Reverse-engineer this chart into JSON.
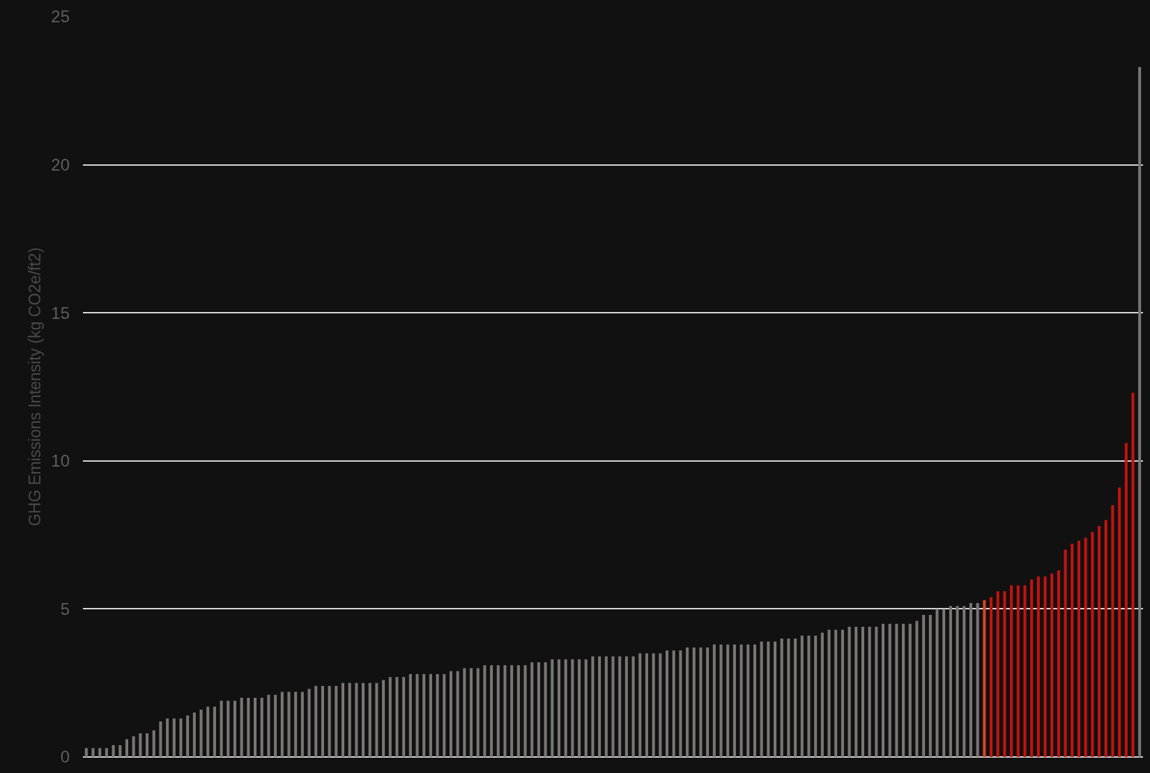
{
  "chart_data": {
    "type": "bar",
    "ylabel": "GHG Emissions Intensity (kg CO2e/ft2)",
    "categories": [
      null,
      null,
      null,
      null,
      null,
      null,
      null,
      null,
      null,
      null,
      null,
      null,
      null,
      null,
      null,
      null,
      null,
      null,
      null,
      null,
      null,
      null,
      null,
      null,
      null,
      null,
      null,
      null,
      null,
      null,
      null,
      null,
      null,
      null,
      null,
      null,
      null,
      null,
      null,
      null,
      null,
      null,
      null,
      null,
      null,
      null,
      null,
      null,
      null,
      null,
      null,
      null,
      null,
      null,
      null,
      null,
      null,
      null,
      null,
      null,
      null,
      null,
      null,
      null,
      null,
      null,
      null,
      null,
      null,
      null,
      null,
      null,
      null,
      null,
      null,
      null,
      null,
      null,
      null,
      null,
      null,
      null,
      null,
      null,
      null,
      null,
      null,
      null,
      null,
      null,
      null,
      null,
      null,
      null,
      null,
      null,
      null,
      null,
      null,
      null,
      null,
      null,
      null,
      null,
      null,
      null,
      null,
      null,
      null,
      null,
      null,
      null,
      null,
      null,
      null,
      null,
      null,
      null,
      null,
      null,
      null,
      null,
      null,
      null,
      null,
      null,
      null,
      null,
      null,
      null,
      null,
      null,
      null,
      null,
      null,
      null,
      null,
      null,
      null,
      null,
      null,
      null,
      null,
      null,
      null,
      null,
      null,
      null,
      null,
      null,
      null,
      null,
      null,
      null,
      null,
      null,
      null
    ],
    "values": [
      0.3,
      0.3,
      0.3,
      0.3,
      0.4,
      0.4,
      0.6,
      0.7,
      0.8,
      0.8,
      0.9,
      1.2,
      1.3,
      1.3,
      1.3,
      1.4,
      1.5,
      1.6,
      1.7,
      1.7,
      1.9,
      1.9,
      1.9,
      2.0,
      2.0,
      2.0,
      2.0,
      2.1,
      2.1,
      2.2,
      2.2,
      2.2,
      2.2,
      2.3,
      2.4,
      2.4,
      2.4,
      2.4,
      2.5,
      2.5,
      2.5,
      2.5,
      2.5,
      2.5,
      2.6,
      2.7,
      2.7,
      2.7,
      2.8,
      2.8,
      2.8,
      2.8,
      2.8,
      2.8,
      2.9,
      2.9,
      3.0,
      3.0,
      3.0,
      3.1,
      3.1,
      3.1,
      3.1,
      3.1,
      3.1,
      3.1,
      3.2,
      3.2,
      3.2,
      3.3,
      3.3,
      3.3,
      3.3,
      3.3,
      3.3,
      3.4,
      3.4,
      3.4,
      3.4,
      3.4,
      3.4,
      3.4,
      3.5,
      3.5,
      3.5,
      3.5,
      3.6,
      3.6,
      3.6,
      3.7,
      3.7,
      3.7,
      3.7,
      3.8,
      3.8,
      3.8,
      3.8,
      3.8,
      3.8,
      3.8,
      3.9,
      3.9,
      3.9,
      4.0,
      4.0,
      4.0,
      4.1,
      4.1,
      4.1,
      4.2,
      4.3,
      4.3,
      4.3,
      4.4,
      4.4,
      4.4,
      4.4,
      4.4,
      4.5,
      4.5,
      4.5,
      4.5,
      4.5,
      4.6,
      4.8,
      4.8,
      5.0,
      5.0,
      5.1,
      5.1,
      5.1,
      5.2,
      5.2,
      5.3,
      5.4,
      5.6,
      5.6,
      5.8,
      5.8,
      5.8,
      6.0,
      6.1,
      6.1,
      6.2,
      6.3,
      7.0,
      7.2,
      7.3,
      7.4,
      7.6,
      7.8,
      8.0,
      8.5,
      9.1,
      10.6,
      12.3,
      23.3
    ],
    "colors": [
      "#7a7676",
      "#7a7676",
      "#7a7676",
      "#7a7676",
      "#7a7676",
      "#7a7676",
      "#7a7676",
      "#7a7676",
      "#7a7676",
      "#7a7676",
      "#7a7676",
      "#7a7676",
      "#7a7676",
      "#7a7676",
      "#7a7676",
      "#7a7676",
      "#7a7676",
      "#7a7676",
      "#7a7676",
      "#7a7676",
      "#7a7676",
      "#7a7676",
      "#7a7676",
      "#7a7676",
      "#7a7676",
      "#7a7676",
      "#7a7676",
      "#7a7676",
      "#7a7676",
      "#7a7676",
      "#7a7676",
      "#7a7676",
      "#7a7676",
      "#7a7676",
      "#7a7676",
      "#7a7676",
      "#7a7676",
      "#7a7676",
      "#7a7676",
      "#7a7676",
      "#7a7676",
      "#7a7676",
      "#7a7676",
      "#7a7676",
      "#7a7676",
      "#7a7676",
      "#7a7676",
      "#7a7676",
      "#7a7676",
      "#7a7676",
      "#7a7676",
      "#7a7676",
      "#7a7676",
      "#7a7676",
      "#7a7676",
      "#7a7676",
      "#7a7676",
      "#7a7676",
      "#7a7676",
      "#7a7676",
      "#7a7676",
      "#7a7676",
      "#7a7676",
      "#7a7676",
      "#7a7676",
      "#7a7676",
      "#7a7676",
      "#7a7676",
      "#7a7676",
      "#7a7676",
      "#7a7676",
      "#7a7676",
      "#7a7676",
      "#7a7676",
      "#7a7676",
      "#7a7676",
      "#7a7676",
      "#7a7676",
      "#7a7676",
      "#7a7676",
      "#7a7676",
      "#7a7676",
      "#7a7676",
      "#7a7676",
      "#7a7676",
      "#7a7676",
      "#7a7676",
      "#7a7676",
      "#7a7676",
      "#7a7676",
      "#7a7676",
      "#7a7676",
      "#7a7676",
      "#7a7676",
      "#7a7676",
      "#7a7676",
      "#7a7676",
      "#7a7676",
      "#7a7676",
      "#7a7676",
      "#7a7676",
      "#7a7676",
      "#7a7676",
      "#7a7676",
      "#7a7676",
      "#7a7676",
      "#7a7676",
      "#7a7676",
      "#7a7676",
      "#7a7676",
      "#7a7676",
      "#7a7676",
      "#7a7676",
      "#7a7676",
      "#7a7676",
      "#7a7676",
      "#7a7676",
      "#7a7676",
      "#7a7676",
      "#7a7676",
      "#7a7676",
      "#7a7676",
      "#7a7676",
      "#7a7676",
      "#7a7676",
      "#7a7676",
      "#7a7676",
      "#7a7676",
      "#7a7676",
      "#7a7676",
      "#7a7676",
      "#7a7676",
      "#7a7676",
      "#d9452a",
      "#c4130f",
      "#c4130f",
      "#c4130f",
      "#c4130f",
      "#c4130f",
      "#c4130f",
      "#c4130f",
      "#c4130f",
      "#c4130f",
      "#c4130f",
      "#c4130f",
      "#c4130f",
      "#c4130f",
      "#c4130f",
      "#c4130f",
      "#c4130f",
      "#c4130f",
      "#c4130f",
      "#c4130f",
      "#c4130f",
      "#c4130f",
      "#c4130f",
      "#7a7676"
    ],
    "ylim": [
      0,
      25
    ],
    "yticks": [
      0,
      5,
      10,
      15,
      20,
      25
    ],
    "grid": "y"
  }
}
